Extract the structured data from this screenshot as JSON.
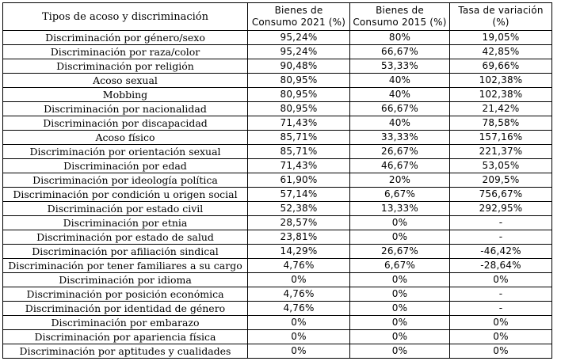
{
  "table": {
    "headers": [
      "Tipos de acoso y discriminación",
      "Bienes de Consumo 2021 (%)",
      "Bienes de Consumo 2015 (%)",
      "Tasa de variación (%)"
    ],
    "header_lines": [
      [
        "Tipos de acoso y discriminación"
      ],
      [
        "Bienes de",
        "Consumo 2021 (%)"
      ],
      [
        "Bienes de",
        "Consumo 2015 (%)"
      ],
      [
        "Tasa de variación",
        "(%)"
      ]
    ],
    "rows": [
      [
        "Discriminación por género/sexo",
        "95,24%",
        "80%",
        "19,05%"
      ],
      [
        "Discriminación por raza/color",
        "95,24%",
        "66,67%",
        "42,85%"
      ],
      [
        "Discriminación por religión",
        "90,48%",
        "53,33%",
        "69,66%"
      ],
      [
        "Acoso sexual",
        "80,95%",
        "40%",
        "102,38%"
      ],
      [
        "Mobbing",
        "80,95%",
        "40%",
        "102,38%"
      ],
      [
        "Discriminación por nacionalidad",
        "80,95%",
        "66,67%",
        "21,42%"
      ],
      [
        "Discriminación por discapacidad",
        "71,43%",
        "40%",
        "78,58%"
      ],
      [
        "Acoso físico",
        "85,71%",
        "33,33%",
        "157,16%"
      ],
      [
        "Discriminación por orientación sexual",
        "85,71%",
        "26,67%",
        "221,37%"
      ],
      [
        "Discriminación por edad",
        "71,43%",
        "46,67%",
        "53,05%"
      ],
      [
        "Discriminación por ideología política",
        "61,90%",
        "20%",
        "209,5%"
      ],
      [
        "Discriminación por condición u origen social",
        "57,14%",
        "6,67%",
        "756,67%"
      ],
      [
        "Discriminación por estado civil",
        "52,38%",
        "13,33%",
        "292,95%"
      ],
      [
        "Discriminación por etnia",
        "28,57%",
        "0%",
        "-"
      ],
      [
        "Discriminación por estado de salud",
        "23,81%",
        "0%",
        "-"
      ],
      [
        "Discriminación por afiliación sindical",
        "14,29%",
        "26,67%",
        "-46,42%"
      ],
      [
        "Discriminación por tener familiares a su cargo",
        "4,76%",
        "6,67%",
        "-28,64%"
      ],
      [
        "Discriminación por idioma",
        "0%",
        "0%",
        "0%"
      ],
      [
        "Discriminación por posición económica",
        "4,76%",
        "0%",
        "-"
      ],
      [
        "Discriminación por identidad de género",
        "4,76%",
        "0%",
        "-"
      ],
      [
        "Discriminación por embarazo",
        "0%",
        "0%",
        "0%"
      ],
      [
        "Discriminación por apariencia física",
        "0%",
        "0%",
        "0%"
      ],
      [
        "Discriminación por aptitudes y cualidades",
        "0%",
        "0%",
        "0%"
      ]
    ]
  }
}
